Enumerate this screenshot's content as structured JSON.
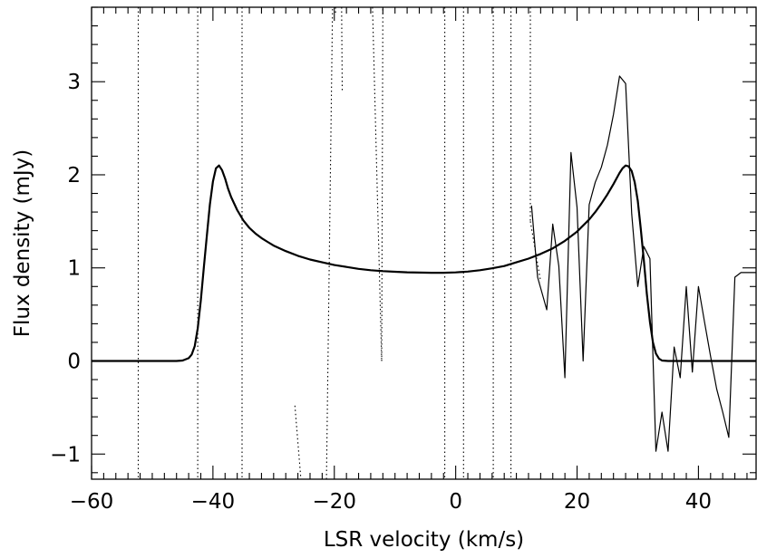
{
  "chart_data": {
    "type": "line",
    "title": "",
    "xlabel": "LSR velocity (km/s)",
    "ylabel": "Flux density (mJy)",
    "xlim": [
      -60,
      49.5
    ],
    "ylim": [
      -1.27,
      3.8
    ],
    "grid": false,
    "legend": "none",
    "x_ticks": [
      -60,
      -40,
      -20,
      0,
      20,
      40
    ],
    "x_tick_labels": [
      "−60",
      "−40",
      "−20",
      "0",
      "20",
      "40"
    ],
    "x_minor_step": 2,
    "y_ticks": [
      -1,
      0,
      1,
      2,
      3
    ],
    "y_tick_labels": [
      "−1",
      "0",
      "1",
      "2",
      "3"
    ],
    "y_minor_step": 0.2,
    "series": [
      {
        "style": "thick-solid",
        "color": "#000000",
        "x": [
          -60,
          -50,
          -46,
          -45,
          -44,
          -43.5,
          -43,
          -42.5,
          -42,
          -41.5,
          -41,
          -40.5,
          -40,
          -39.5,
          -39,
          -38.5,
          -38,
          -37.5,
          -37,
          -36,
          -35,
          -34,
          -33,
          -32,
          -31,
          -30,
          -28,
          -26,
          -24,
          -22,
          -20,
          -18,
          -16,
          -14,
          -12,
          -10,
          -8,
          -6,
          -4,
          -2,
          0,
          2,
          4,
          6,
          8,
          10,
          12,
          14,
          16,
          18,
          20,
          22,
          23,
          24,
          25,
          26,
          27,
          27.5,
          28,
          28.5,
          29,
          29.5,
          30,
          30.5,
          31,
          31.5,
          32,
          32.5,
          33,
          33.5,
          34,
          35,
          36,
          40,
          45,
          49.5
        ],
        "values": [
          0,
          0,
          0,
          0.005,
          0.03,
          0.07,
          0.16,
          0.35,
          0.65,
          1.0,
          1.35,
          1.68,
          1.93,
          2.07,
          2.1,
          2.05,
          1.96,
          1.85,
          1.76,
          1.62,
          1.51,
          1.43,
          1.37,
          1.32,
          1.28,
          1.24,
          1.18,
          1.13,
          1.09,
          1.06,
          1.03,
          1.01,
          0.99,
          0.975,
          0.965,
          0.958,
          0.953,
          0.95,
          0.948,
          0.948,
          0.952,
          0.96,
          0.975,
          0.995,
          1.02,
          1.06,
          1.1,
          1.15,
          1.21,
          1.29,
          1.39,
          1.52,
          1.6,
          1.69,
          1.79,
          1.9,
          2.02,
          2.07,
          2.1,
          2.09,
          2.04,
          1.92,
          1.72,
          1.42,
          1.08,
          0.72,
          0.42,
          0.2,
          0.08,
          0.025,
          0.005,
          0,
          0,
          0,
          0,
          0
        ]
      },
      {
        "style": "thin-solid",
        "color": "#000000",
        "x": [
          12.5,
          13.5,
          15,
          16,
          17,
          18,
          19,
          20,
          21,
          22,
          23,
          24,
          25,
          26,
          27,
          28,
          29,
          30,
          31,
          32,
          33,
          34,
          35,
          36,
          37,
          38,
          39,
          40,
          41,
          42,
          43,
          44,
          45,
          46,
          47,
          48,
          49,
          49.5
        ],
        "values": [
          1.67,
          0.9,
          0.55,
          1.47,
          1.02,
          -0.18,
          2.24,
          1.65,
          0.0,
          1.68,
          1.92,
          2.08,
          2.32,
          2.65,
          3.06,
          2.98,
          1.58,
          0.8,
          1.23,
          1.1,
          -0.97,
          -0.55,
          -0.97,
          0.15,
          -0.18,
          0.8,
          -0.12,
          0.8,
          0.42,
          0.05,
          -0.3,
          -0.55,
          -0.82,
          0.9,
          0.95,
          0.95,
          0.95,
          0.95
        ]
      },
      {
        "style": "dotted",
        "color": "#000000",
        "segments": [
          {
            "x": [
              -52.3,
              -52.3
            ],
            "values": [
              3.8,
              -1.27
            ]
          },
          {
            "x": [
              -42.5,
              -42.5
            ],
            "values": [
              3.8,
              -1.27
            ]
          },
          {
            "x": [
              -35.2,
              -35.2
            ],
            "values": [
              3.8,
              -1.27
            ]
          },
          {
            "x": [
              -26.5,
              -25.5
            ],
            "values": [
              -0.48,
              -1.27
            ]
          },
          {
            "x": [
              -21.3,
              -20.3
            ],
            "values": [
              -1.27,
              3.8
            ]
          },
          {
            "x": [
              -19.8,
              -19.8
            ],
            "values": [
              3.8,
              3.72
            ]
          },
          {
            "x": [
              -18.8,
              -18.7
            ],
            "values": [
              3.8,
              2.9
            ]
          },
          {
            "x": [
              -13.7,
              -12.2
            ],
            "values": [
              3.8,
              0.0
            ]
          },
          {
            "x": [
              -12.2,
              -12.0
            ],
            "values": [
              0.0,
              3.8
            ]
          },
          {
            "x": [
              -1.8,
              -1.8
            ],
            "values": [
              3.8,
              -1.27
            ]
          },
          {
            "x": [
              1.3,
              1.3
            ],
            "values": [
              3.8,
              -1.27
            ]
          },
          {
            "x": [
              6.2,
              6.2
            ],
            "values": [
              3.8,
              -1.27
            ]
          },
          {
            "x": [
              9.1,
              9.1
            ],
            "values": [
              3.8,
              -1.27
            ]
          },
          {
            "x": [
              12.3,
              12.3
            ],
            "values": [
              3.8,
              1.5
            ]
          },
          {
            "x": [
              12.3,
              14.0
            ],
            "values": [
              1.5,
              0.85
            ]
          }
        ]
      }
    ]
  }
}
